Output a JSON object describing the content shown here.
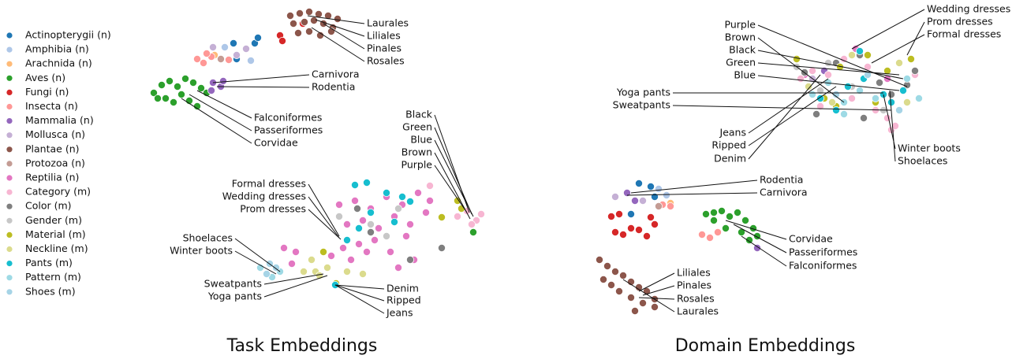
{
  "chart_data": [
    {
      "type": "scatter",
      "title": "Task Embeddings",
      "xlim": [
        185,
        620
      ],
      "ylim": [
        410,
        5
      ],
      "series": [
        {
          "name": "Actinopterygii (n)",
          "color": "#1f77b4",
          "x": [
            296,
            323,
            300,
            327
          ],
          "y": [
            55,
            55,
            75,
            48
          ]
        },
        {
          "name": "Amphibia (n)",
          "color": "#aec7e8",
          "x": [
            285,
            318
          ],
          "y": [
            60,
            77
          ]
        },
        {
          "name": "Arachnida (n)",
          "color": "#ffbb78",
          "x": [
            272
          ],
          "y": [
            70
          ]
        },
        {
          "name": "Aves (n)",
          "color": "#2ca02c",
          "x": [
            195,
            205,
            215,
            225,
            235,
            245,
            255,
            262,
            210,
            220,
            230,
            240,
            250,
            200,
            600
          ],
          "y": [
            118,
            108,
            103,
            110,
            100,
            105,
            112,
            118,
            125,
            130,
            120,
            128,
            135,
            125,
            295
          ]
        },
        {
          "name": "Fungi (n)",
          "color": "#d62728",
          "x": [
            355,
            358,
            384
          ],
          "y": [
            45,
            52,
            30
          ]
        },
        {
          "name": "Insecta (n)",
          "color": "#ff9896",
          "x": [
            250,
            258,
            268,
            290,
            262
          ],
          "y": [
            75,
            80,
            72,
            76,
            68
          ]
        },
        {
          "name": "Mammalia (n)",
          "color": "#9467bd",
          "x": [
            270,
            280,
            268,
            283
          ],
          "y": [
            105,
            110,
            115,
            103
          ]
        },
        {
          "name": "Mollusca (n)",
          "color": "#c5b0d5",
          "x": [
            270,
            312,
            300
          ],
          "y": [
            60,
            62,
            70
          ]
        },
        {
          "name": "Plantae (n)",
          "color": "#8c564b",
          "x": [
            368,
            380,
            392,
            404,
            416,
            428,
            372,
            386,
            398,
            410,
            422,
            378,
            392,
            406,
            420
          ],
          "y": [
            20,
            17,
            15,
            18,
            20,
            24,
            30,
            28,
            26,
            30,
            35,
            42,
            40,
            45,
            40
          ]
        },
        {
          "name": "Protozoa (n)",
          "color": "#c49c94",
          "x": [
            280
          ],
          "y": [
            75
          ]
        },
        {
          "name": "Reptilia (n)",
          "color": "#e377c2",
          "x": [
            430,
            450,
            470,
            490,
            510,
            530,
            545,
            440,
            460,
            480,
            500,
            520,
            540,
            435,
            455,
            475,
            495,
            515,
            420,
            445,
            465,
            505,
            525,
            360,
            375,
            370
          ],
          "y": [
            260,
            255,
            265,
            250,
            260,
            245,
            255,
            285,
            280,
            290,
            275,
            285,
            270,
            315,
            310,
            305,
            320,
            300,
            325,
            330,
            320,
            340,
            330,
            315,
            320,
            335
          ]
        },
        {
          "name": "Category (m)",
          "color": "#f7b6d2",
          "x": [
            580,
            592,
            604,
            610,
            545,
            598
          ],
          "y": [
            275,
            268,
            280,
            272,
            236,
            285
          ]
        },
        {
          "name": "Color (m)",
          "color": "#7f7f7f",
          "x": [
            520,
            470,
            560,
            453
          ],
          "y": [
            330,
            295,
            315,
            265
          ]
        },
        {
          "name": "Gender (m)",
          "color": "#c7c7c7",
          "x": [
            430,
            490,
            470,
            505
          ],
          "y": [
            275,
            300,
            285,
            265
          ]
        },
        {
          "name": "Material (m)",
          "color": "#bcbd22",
          "x": [
            410,
            580,
            560,
            585,
            426
          ],
          "y": [
            320,
            255,
            276,
            265,
            360
          ]
        },
        {
          "name": "Neckline (m)",
          "color": "#dbdb8d",
          "x": [
            385,
            400,
            415,
            440,
            460,
            395,
            405
          ],
          "y": [
            345,
            345,
            340,
            345,
            348,
            330,
            350
          ]
        },
        {
          "name": "Pants (m)",
          "color": "#17becf",
          "x": [
            450,
            465,
            490,
            510,
            470,
            455,
            500,
            520,
            440,
            425
          ],
          "y": [
            235,
            232,
            245,
            250,
            270,
            290,
            282,
            256,
            305,
            362
          ]
        },
        {
          "name": "Pattern (m)",
          "color": "#9edae5",
          "x": [
            330,
            345,
            355
          ],
          "y": [
            340,
            352,
            345
          ]
        },
        {
          "name": "Shoes (m)",
          "color": "#a6d4e6",
          "x": [
            338,
            350,
            342
          ],
          "y": [
            348,
            340,
            335
          ]
        }
      ],
      "annotations": [
        "Laurales",
        "Liliales",
        "Pinales",
        "Rosales",
        "Carnivora",
        "Rodentia",
        "Falconiformes",
        "Passeriformes",
        "Corvidae",
        "Black",
        "Green",
        "Blue",
        "Brown",
        "Purple",
        "Formal dresses",
        "Wedding dresses",
        "Prom dresses",
        "Shoelaces",
        "Winter boots",
        "Sweatpants",
        "Yoga pants",
        "Denim",
        "Ripped",
        "Jeans"
      ]
    },
    {
      "type": "scatter",
      "title": "Domain Embeddings",
      "xlim": [
        740,
        1290
      ],
      "ylim": [
        410,
        5
      ],
      "series": [
        {
          "name": "Actinopterygii (n)",
          "color": "#1f77b4",
          "x": [
            810,
            825,
            830,
            800
          ],
          "y": [
            233,
            237,
            250,
            272
          ]
        },
        {
          "name": "Amphibia (n)",
          "color": "#aec7e8",
          "x": [
            835,
            845
          ],
          "y": [
            240,
            248
          ]
        },
        {
          "name": "Arachnida (n)",
          "color": "#ffbb78",
          "x": [
            850
          ],
          "y": [
            258
          ]
        },
        {
          "name": "Aves (n)",
          "color": "#2ca02c",
          "x": [
            895,
            905,
            915,
            925,
            935,
            945,
            955,
            960,
            905,
            920,
            940,
            950
          ],
          "y": [
            272,
            270,
            268,
            275,
            270,
            280,
            290,
            300,
            280,
            290,
            295,
            305
          ]
        },
        {
          "name": "Fungi (n)",
          "color": "#d62728",
          "x": [
            780,
            790,
            800,
            810,
            820,
            830,
            775,
            785,
            825
          ],
          "y": [
            295,
            298,
            290,
            292,
            300,
            285,
            275,
            272,
            276
          ]
        },
        {
          "name": "Insecta (n)",
          "color": "#ff9896",
          "x": [
            890,
            900,
            910,
            840,
            850,
            1135
          ],
          "y": [
            298,
            302,
            295,
            260,
            262,
            160
          ]
        },
        {
          "name": "Mammalia (n)",
          "color": "#9467bd",
          "x": [
            795,
            805,
            960,
            1045
          ],
          "y": [
            245,
            255,
            315,
            90
          ]
        },
        {
          "name": "Mollusca (n)",
          "color": "#c5b0d5",
          "x": [
            815,
            780,
            1030
          ],
          "y": [
            255,
            250,
            100
          ]
        },
        {
          "name": "Plantae (n)",
          "color": "#8c564b",
          "x": [
            760,
            770,
            780,
            790,
            800,
            810,
            820,
            830,
            765,
            775,
            785,
            800,
            815,
            830,
            805
          ],
          "y": [
            330,
            338,
            345,
            350,
            358,
            365,
            370,
            380,
            355,
            362,
            370,
            378,
            385,
            390,
            395
          ]
        },
        {
          "name": "Protozoa (n)",
          "color": "#c49c94",
          "x": [
            835
          ],
          "y": [
            262
          ]
        },
        {
          "name": "Reptilia (n)",
          "color": "#e377c2",
          "x": [
            1085,
            1125,
            1020
          ],
          "y": [
            62,
            100,
            95
          ]
        },
        {
          "name": "Category (m)",
          "color": "#f7b6d2",
          "x": [
            1015,
            1030,
            1050,
            1070,
            1100,
            1125,
            1130,
            1160,
            1040,
            1080,
            1110,
            1135
          ],
          "y": [
            100,
            90,
            95,
            75,
            85,
            150,
            165,
            95,
            135,
            125,
            140,
            160
          ]
        },
        {
          "name": "Color (m)",
          "color": "#7f7f7f",
          "x": [
            1020,
            1060,
            1090,
            1115,
            1150,
            1160,
            1035,
            1095,
            1130
          ],
          "y": [
            92,
            80,
            70,
            105,
            108,
            90,
            145,
            150,
            120
          ]
        },
        {
          "name": "Gender (m)",
          "color": "#c7c7c7",
          "x": [
            1010,
            1040,
            1080,
            1120,
            1050
          ],
          "y": [
            85,
            115,
            110,
            140,
            80
          ]
        },
        {
          "name": "Material (m)",
          "color": "#bcbd22",
          "x": [
            1010,
            1045,
            1065,
            1100,
            1125,
            1155,
            1110,
            1060
          ],
          "y": [
            75,
            125,
            85,
            70,
            90,
            75,
            130,
            135
          ]
        },
        {
          "name": "Neckline (m)",
          "color": "#dbdb8d",
          "x": [
            1025,
            1055,
            1080,
            1140,
            1150
          ],
          "y": [
            110,
            130,
            70,
            80,
            130
          ]
        },
        {
          "name": "Pants (m)",
          "color": "#17becf",
          "x": [
            1040,
            1075,
            1095,
            1120,
            1130,
            1145,
            1090,
            1060
          ],
          "y": [
            125,
            110,
            100,
            120,
            130,
            115,
            65,
            140
          ]
        },
        {
          "name": "Pattern (m)",
          "color": "#9edae5",
          "x": [
            1030,
            1050,
            1070,
            1090,
            1110,
            1150,
            1165,
            1070
          ],
          "y": [
            120,
            105,
            130,
            115,
            125,
            100,
            125,
            145
          ]
        },
        {
          "name": "Shoes (m)",
          "color": "#a6d4e6",
          "x": [
            1060,
            1100,
            1140
          ],
          "y": [
            120,
            95,
            140
          ]
        }
      ],
      "annotations": [
        "Wedding dresses",
        "Prom dresses",
        "Formal dresses",
        "Purple",
        "Brown",
        "Black",
        "Green",
        "Blue",
        "Yoga pants",
        "Sweatpants",
        "Jeans",
        "Ripped",
        "Denim",
        "Winter boots",
        "Shoelaces",
        "Rodentia",
        "Carnivora",
        "Corvidae",
        "Passeriformes",
        "Falconiformes",
        "Liliales",
        "Pinales",
        "Rosales",
        "Laurales"
      ]
    }
  ]
}
